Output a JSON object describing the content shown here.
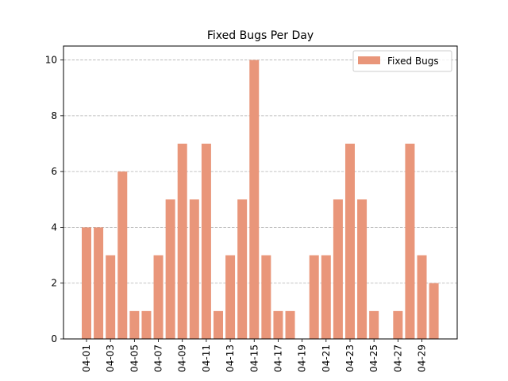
{
  "chart_data": {
    "type": "bar",
    "title": "Fixed Bugs Per Day",
    "xlabel": "",
    "ylabel": "",
    "categories": [
      "04-01",
      "04-02",
      "04-03",
      "04-04",
      "04-05",
      "04-06",
      "04-07",
      "04-08",
      "04-09",
      "04-10",
      "04-11",
      "04-12",
      "04-13",
      "04-14",
      "04-15",
      "04-16",
      "04-17",
      "04-18",
      "04-19",
      "04-20",
      "04-21",
      "04-22",
      "04-23",
      "04-24",
      "04-25",
      "04-26",
      "04-27",
      "04-28",
      "04-29",
      "04-30"
    ],
    "tick_labels": [
      "04-01",
      "04-03",
      "04-05",
      "04-07",
      "04-09",
      "04-11",
      "04-13",
      "04-15",
      "04-17",
      "04-19",
      "04-21",
      "04-23",
      "04-25",
      "04-27",
      "04-29"
    ],
    "series": [
      {
        "name": "Fixed Bugs",
        "color": "#E9967A",
        "values": [
          4,
          4,
          3,
          6,
          1,
          1,
          3,
          5,
          7,
          5,
          7,
          1,
          3,
          5,
          10,
          3,
          1,
          1,
          0,
          3,
          3,
          5,
          7,
          5,
          1,
          0,
          1,
          7,
          3,
          2
        ]
      }
    ],
    "yticks": [
      0,
      2,
      4,
      6,
      8,
      10
    ],
    "ylim": [
      0,
      10.5
    ],
    "grid": "y-dashed",
    "legend": "top-right"
  }
}
